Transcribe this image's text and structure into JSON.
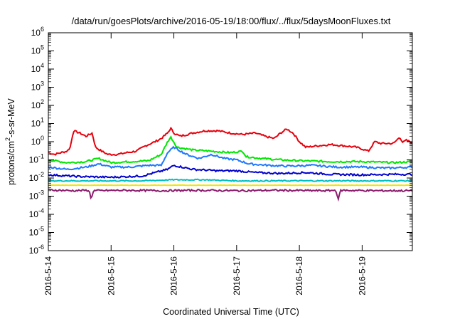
{
  "chart_data": {
    "type": "line",
    "title": "/data/run/goesPlots/archive/2016-05-19/18:00/flux/../flux/5daysMoonFluxes.txt",
    "xlabel": "Coordinated Universal Time (UTC)",
    "ylabel": "protons/cm2-s-sr-MeV",
    "ylabel_parts": [
      "protons/cm",
      "2",
      "-s-sr-MeV"
    ],
    "yscale": "log",
    "ylim_exp": [
      -6,
      6
    ],
    "ytick_exps": [
      -6,
      -5,
      -4,
      -3,
      -2,
      -1,
      0,
      1,
      2,
      3,
      4,
      5,
      6
    ],
    "xlim_days": [
      0,
      5.8
    ],
    "xtick_labels": [
      "2016-5-14",
      "2016-5-15",
      "2016-5-16",
      "2016-5-17",
      "2016-5-18",
      "2016-5-19"
    ],
    "xtick_days": [
      0,
      1,
      2,
      3,
      4,
      5
    ],
    "grid": false,
    "legend": "none",
    "series": [
      {
        "color": "#e8000b",
        "points": [
          [
            0,
            0.25
          ],
          [
            0.1,
            0.2
          ],
          [
            0.2,
            0.25
          ],
          [
            0.3,
            0.3
          ],
          [
            0.35,
            0.5
          ],
          [
            0.4,
            4
          ],
          [
            0.5,
            3
          ],
          [
            0.6,
            2
          ],
          [
            0.7,
            3
          ],
          [
            0.75,
            0.5
          ],
          [
            0.85,
            0.3
          ],
          [
            0.95,
            0.2
          ],
          [
            1.1,
            0.2
          ],
          [
            1.25,
            0.25
          ],
          [
            1.4,
            0.3
          ],
          [
            1.55,
            0.6
          ],
          [
            1.7,
            1
          ],
          [
            1.8,
            1.5
          ],
          [
            1.9,
            3
          ],
          [
            1.95,
            5.5
          ],
          [
            2.0,
            3
          ],
          [
            2.1,
            2
          ],
          [
            2.3,
            3
          ],
          [
            2.5,
            4
          ],
          [
            2.7,
            4
          ],
          [
            2.9,
            3
          ],
          [
            3.1,
            2.5
          ],
          [
            3.3,
            3
          ],
          [
            3.45,
            2
          ],
          [
            3.6,
            1.5
          ],
          [
            3.7,
            3
          ],
          [
            3.8,
            5
          ],
          [
            3.9,
            3
          ],
          [
            4.0,
            1
          ],
          [
            4.1,
            0.5
          ],
          [
            4.3,
            0.6
          ],
          [
            4.5,
            0.7
          ],
          [
            4.7,
            0.6
          ],
          [
            4.9,
            0.5
          ],
          [
            5.0,
            0.4
          ],
          [
            5.1,
            0.3
          ],
          [
            5.2,
            1
          ],
          [
            5.3,
            0.8
          ],
          [
            5.4,
            0.8
          ],
          [
            5.5,
            0.8
          ],
          [
            5.6,
            1.8
          ],
          [
            5.65,
            0.9
          ],
          [
            5.7,
            1.2
          ],
          [
            5.8,
            0.9
          ]
        ]
      },
      {
        "color": "#00e600",
        "points": [
          [
            0,
            0.1
          ],
          [
            0.3,
            0.07
          ],
          [
            0.6,
            0.08
          ],
          [
            0.8,
            0.12
          ],
          [
            1.0,
            0.07
          ],
          [
            1.3,
            0.08
          ],
          [
            1.6,
            0.09
          ],
          [
            1.8,
            0.2
          ],
          [
            1.9,
            1
          ],
          [
            1.95,
            1.8
          ],
          [
            2.05,
            0.5
          ],
          [
            2.3,
            0.35
          ],
          [
            2.6,
            0.3
          ],
          [
            2.9,
            0.25
          ],
          [
            3.1,
            0.3
          ],
          [
            3.15,
            0.15
          ],
          [
            3.4,
            0.12
          ],
          [
            3.7,
            0.1
          ],
          [
            4.0,
            0.09
          ],
          [
            4.5,
            0.08
          ],
          [
            5.0,
            0.08
          ],
          [
            5.5,
            0.07
          ],
          [
            5.8,
            0.08
          ]
        ]
      },
      {
        "color": "#1e78ff",
        "points": [
          [
            0,
            0.04
          ],
          [
            0.3,
            0.03
          ],
          [
            0.6,
            0.04
          ],
          [
            0.8,
            0.06
          ],
          [
            1.0,
            0.04
          ],
          [
            1.3,
            0.04
          ],
          [
            1.6,
            0.05
          ],
          [
            1.8,
            0.05
          ],
          [
            1.9,
            0.25
          ],
          [
            2.0,
            0.5
          ],
          [
            2.2,
            0.2
          ],
          [
            2.4,
            0.12
          ],
          [
            2.6,
            0.2
          ],
          [
            2.8,
            0.12
          ],
          [
            3.0,
            0.1
          ],
          [
            3.2,
            0.06
          ],
          [
            3.5,
            0.05
          ],
          [
            3.8,
            0.045
          ],
          [
            4.2,
            0.05
          ],
          [
            4.6,
            0.04
          ],
          [
            5.0,
            0.04
          ],
          [
            5.4,
            0.035
          ],
          [
            5.8,
            0.04
          ]
        ]
      },
      {
        "color": "#0000cc",
        "points": [
          [
            0,
            0.015
          ],
          [
            0.5,
            0.012
          ],
          [
            1.0,
            0.011
          ],
          [
            1.5,
            0.013
          ],
          [
            1.9,
            0.03
          ],
          [
            2.0,
            0.05
          ],
          [
            2.3,
            0.03
          ],
          [
            2.7,
            0.025
          ],
          [
            3.0,
            0.025
          ],
          [
            3.3,
            0.02
          ],
          [
            3.7,
            0.018
          ],
          [
            4.1,
            0.02
          ],
          [
            4.5,
            0.016
          ],
          [
            5.0,
            0.015
          ],
          [
            5.5,
            0.016
          ],
          [
            5.8,
            0.016
          ]
        ]
      },
      {
        "color": "#00c0c0",
        "points": [
          [
            0,
            0.007
          ],
          [
            0.5,
            0.007
          ],
          [
            1.0,
            0.007
          ],
          [
            1.5,
            0.007
          ],
          [
            2.0,
            0.008
          ],
          [
            2.5,
            0.008
          ],
          [
            3.0,
            0.007
          ],
          [
            3.5,
            0.007
          ],
          [
            4.0,
            0.007
          ],
          [
            4.5,
            0.007
          ],
          [
            5.0,
            0.007
          ],
          [
            5.5,
            0.007
          ],
          [
            5.8,
            0.007
          ]
        ]
      },
      {
        "color": "#f0e600",
        "points": [
          [
            0,
            0.004
          ],
          [
            1.0,
            0.004
          ],
          [
            2.0,
            0.004
          ],
          [
            3.0,
            0.004
          ],
          [
            4.0,
            0.004
          ],
          [
            5.0,
            0.004
          ],
          [
            5.8,
            0.004
          ]
        ]
      },
      {
        "color": "#8c1e6e",
        "points": [
          [
            0,
            0.0022
          ],
          [
            0.4,
            0.002
          ],
          [
            0.65,
            0.0021
          ],
          [
            0.68,
            0.0007
          ],
          [
            0.72,
            0.002
          ],
          [
            1.2,
            0.0021
          ],
          [
            1.8,
            0.002
          ],
          [
            2.4,
            0.0021
          ],
          [
            3.0,
            0.002
          ],
          [
            3.6,
            0.0021
          ],
          [
            4.4,
            0.002
          ],
          [
            4.58,
            0.0021
          ],
          [
            4.62,
            0.0007
          ],
          [
            4.66,
            0.0021
          ],
          [
            5.2,
            0.002
          ],
          [
            5.8,
            0.002
          ]
        ]
      }
    ]
  }
}
